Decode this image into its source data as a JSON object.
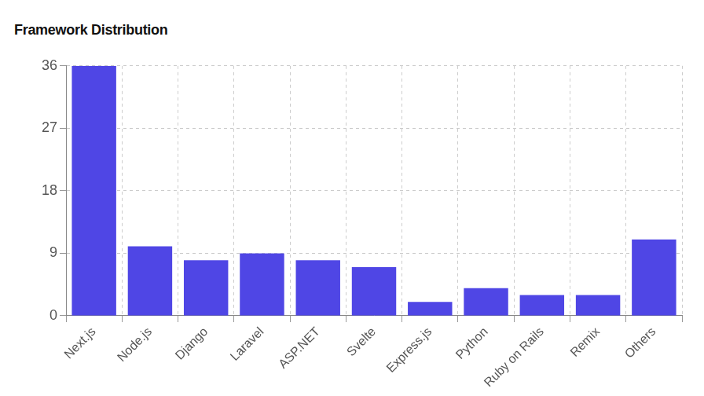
{
  "chart_data": {
    "type": "bar",
    "title": "Framework Distribution",
    "categories": [
      "Next.js",
      "Node.js",
      "Django",
      "Laravel",
      "ASP.NET",
      "Svelte",
      "Express.js",
      "Python",
      "Ruby on Rails",
      "Remix",
      "Others"
    ],
    "values": [
      36,
      10,
      8,
      9,
      8,
      7,
      2,
      4,
      3,
      3,
      11
    ],
    "color": "#4f46e5",
    "ylim": [
      0,
      36
    ],
    "yticks": [
      0,
      9,
      18,
      27,
      36
    ],
    "grid": true
  }
}
